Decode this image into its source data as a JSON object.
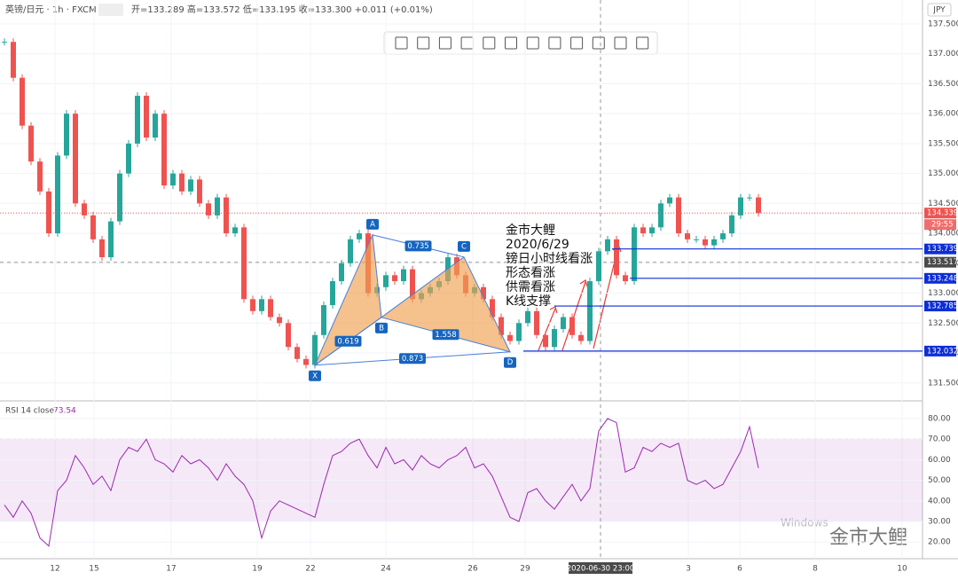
{
  "chart_data": {
    "type": "candlestick",
    "symbol": "英镑/日元 · 1h · FXCM",
    "ohlc": "开=133.289 高=133.572 低=133.195 收=133.300 +0.011 (+0.01%)",
    "currency": "JPY",
    "xlim": [
      0,
      104
    ],
    "xticks": [
      {
        "value": 6.2,
        "label": "12"
      },
      {
        "value": 10.6,
        "label": "15"
      },
      {
        "value": 19.3,
        "label": "17"
      },
      {
        "value": 29,
        "label": "19"
      },
      {
        "value": 35,
        "label": "22"
      },
      {
        "value": 43.5,
        "label": "24"
      },
      {
        "value": 53.3,
        "label": "26"
      },
      {
        "value": 59.2,
        "label": "29"
      },
      {
        "value": 77.6,
        "label": "3"
      },
      {
        "value": 83.4,
        "label": "6"
      },
      {
        "value": 91.9,
        "label": "8"
      },
      {
        "value": 101.7,
        "label": "10"
      }
    ],
    "crosshair_x": {
      "value": 67.7,
      "label": "2020-06-30  23:00"
    },
    "ylim": [
      131.2,
      137.9
    ],
    "yticks": [
      {
        "value": 131.5,
        "label": "131.500"
      },
      {
        "value": 132,
        "label": "132.000"
      },
      {
        "value": 132.5,
        "label": "132.500"
      },
      {
        "value": 133,
        "label": "133.000"
      },
      {
        "value": 133.5,
        "label": "133.500"
      },
      {
        "value": 134,
        "label": "134.000"
      },
      {
        "value": 134.5,
        "label": "134.500"
      },
      {
        "value": 135,
        "label": "135.000"
      },
      {
        "value": 135.5,
        "label": "135.500"
      },
      {
        "value": 136,
        "label": "136.000"
      },
      {
        "value": 136.5,
        "label": "136.500"
      },
      {
        "value": 137,
        "label": "137.000"
      },
      {
        "value": 137.5,
        "label": "137.500"
      }
    ],
    "values": [
      137.2,
      136.6,
      135.8,
      135.2,
      134.7,
      134.0,
      135.3,
      136.0,
      134.5,
      134.3,
      133.9,
      133.6,
      134.2,
      135.0,
      135.5,
      136.3,
      135.6,
      136.0,
      134.8,
      135.0,
      134.7,
      134.9,
      134.5,
      134.3,
      134.6,
      134.0,
      134.1,
      132.9,
      132.7,
      132.9,
      132.6,
      132.5,
      132.1,
      131.9,
      131.8,
      132.3,
      132.8,
      133.2,
      133.5,
      133.9,
      134.0,
      133.0,
      133.1,
      133.3,
      133.2,
      133.4,
      132.9,
      133.0,
      133.1,
      133.2,
      133.6,
      133.3,
      133.0,
      133.1,
      132.9,
      132.6,
      132.3,
      132.2,
      132.5,
      132.7,
      132.3,
      132.1,
      132.4,
      132.6,
      132.3,
      132.2,
      133.2,
      133.7,
      133.9,
      133.3,
      133.2,
      134.1,
      134.0,
      134.1,
      134.5,
      134.6,
      134.0,
      133.9,
      133.9,
      133.8,
      133.9,
      134.0,
      134.3,
      134.6,
      134.6,
      134.339
    ],
    "up_color": "#26a69a",
    "down_color": "#ef5350",
    "last_price": {
      "value": 134.339,
      "label": "134.339",
      "countdown": "29:55"
    },
    "crosshair_y": {
      "value": 133.517,
      "label": "133.517"
    },
    "levels": [
      {
        "value": 133.739,
        "label": "133.739",
        "from": 69
      },
      {
        "value": 133.248,
        "label": "133.248",
        "from": 71
      },
      {
        "value": 132.785,
        "label": "132.785",
        "from": 62.5
      },
      {
        "value": 132.032,
        "label": "132.032",
        "from": 59
      }
    ],
    "pattern": [
      {
        "label": "X",
        "x": 35.5,
        "y": 131.796
      },
      {
        "label": "A",
        "x": 42,
        "y": 133.974
      },
      {
        "label": "B",
        "x": 43,
        "y": 132.596
      },
      {
        "label": "C",
        "x": 52.3,
        "y": 133.604
      },
      {
        "label": "D",
        "x": 57.5,
        "y": 132.019
      }
    ],
    "ratios": [
      "0.735",
      "0.619",
      "1.558",
      "0.873"
    ],
    "annotation": [
      "金市大鲤",
      "2020/6/29",
      "镑日小时线看涨",
      "形态看涨",
      "供需看涨",
      "K线支撑"
    ],
    "rsi": {
      "title": "RSI 14 close",
      "last": "73.54",
      "color": "#9c27b0",
      "ylim": [
        11.9,
        87.3
      ],
      "band": [
        30,
        70
      ],
      "yticks": [
        {
          "value": 20,
          "label": "20.00"
        },
        {
          "value": 30,
          "label": "30.00"
        },
        {
          "value": 40,
          "label": "40.00"
        },
        {
          "value": 50,
          "label": "50.00"
        },
        {
          "value": 60,
          "label": "60.00"
        },
        {
          "value": 70,
          "label": "70.00"
        },
        {
          "value": 80,
          "label": "80.00"
        }
      ],
      "values": [
        38,
        32,
        40,
        34,
        22,
        18,
        45,
        50,
        62,
        56,
        48,
        52,
        45,
        60,
        66,
        64,
        70,
        60,
        58,
        54,
        62,
        58,
        60,
        56,
        50,
        58,
        52,
        48,
        40,
        22,
        35,
        40,
        38,
        36,
        34,
        32,
        48,
        62,
        64,
        68,
        70,
        62,
        56,
        66,
        58,
        60,
        55,
        62,
        58,
        56,
        60,
        62,
        66,
        56,
        58,
        52,
        42,
        32,
        30,
        44,
        46,
        40,
        36,
        42,
        48,
        40,
        46,
        74,
        80,
        78,
        54,
        56,
        66,
        64,
        68,
        66,
        68,
        50,
        48,
        50,
        46,
        48,
        56,
        64,
        76,
        56
      ]
    },
    "watermark": [
      "金市大鲤",
      "Windows"
    ]
  }
}
